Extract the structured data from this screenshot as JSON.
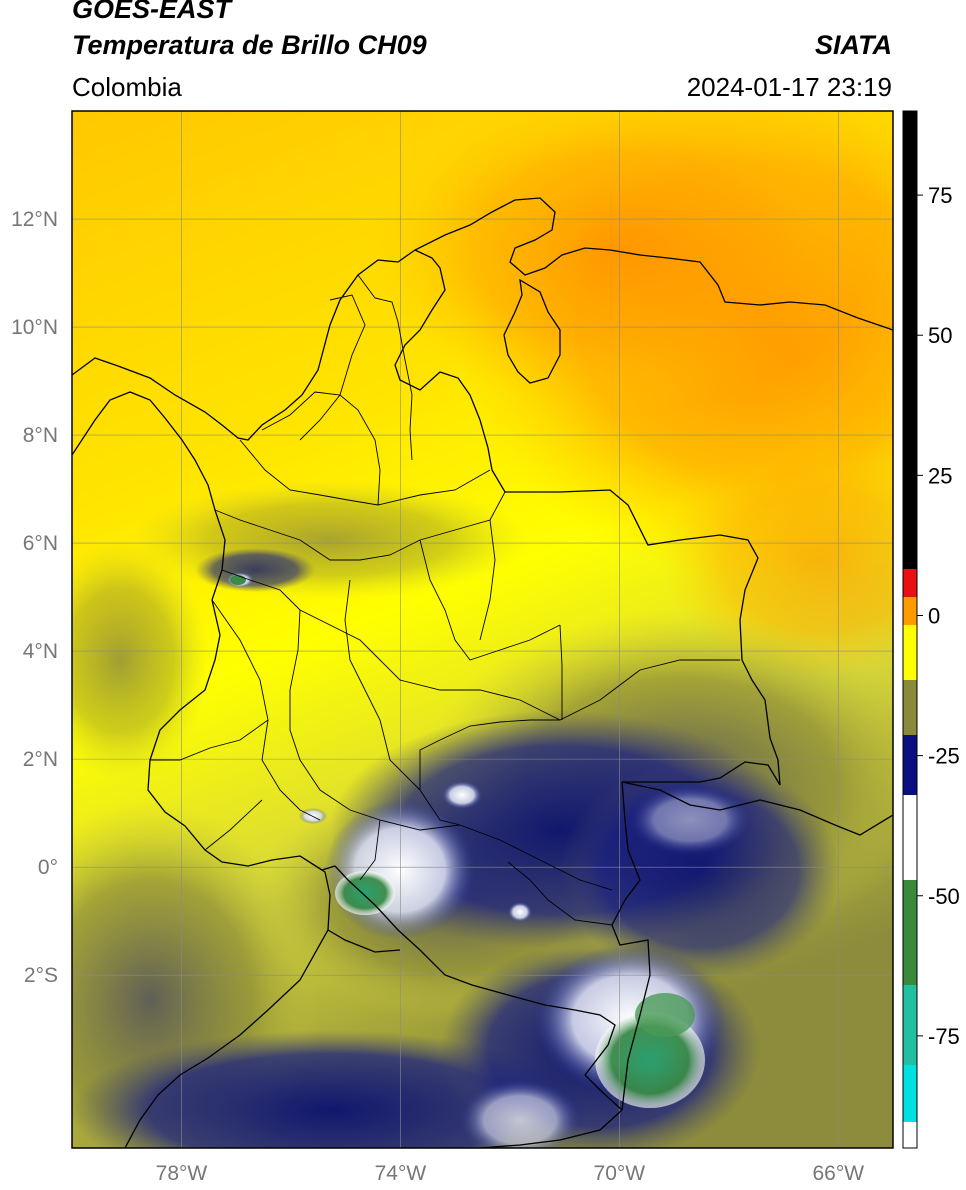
{
  "header": {
    "satellite": "GOES-EAST",
    "product": "Temperatura de Brillo CH09",
    "organization": "SIATA",
    "region": "Colombia",
    "datetime": "2024-01-17 23:19"
  },
  "map": {
    "lon_range": [
      -80,
      -65
    ],
    "lat_range": [
      -5.2,
      14
    ],
    "lon_ticks": [
      {
        "value": -78,
        "label": "78°W"
      },
      {
        "value": -74,
        "label": "74°W"
      },
      {
        "value": -70,
        "label": "70°W"
      },
      {
        "value": -66,
        "label": "66°W"
      }
    ],
    "lat_ticks": [
      {
        "value": 12,
        "label": "12°N"
      },
      {
        "value": 10,
        "label": "10°N"
      },
      {
        "value": 8,
        "label": "8°N"
      },
      {
        "value": 6,
        "label": "6°N"
      },
      {
        "value": 4,
        "label": "4°N"
      },
      {
        "value": 2,
        "label": "2°N"
      },
      {
        "value": 0,
        "label": "0°"
      },
      {
        "value": -2,
        "label": "2°S"
      }
    ],
    "grid": true
  },
  "colorbar": {
    "range": [
      -95,
      90
    ],
    "ticks": [
      {
        "value": 75,
        "label": "75"
      },
      {
        "value": 50,
        "label": "50"
      },
      {
        "value": 25,
        "label": "25"
      },
      {
        "value": 0,
        "label": "0"
      },
      {
        "value": -25,
        "label": "-25"
      },
      {
        "value": -50,
        "label": "-50"
      },
      {
        "value": -75,
        "label": "-75"
      }
    ],
    "colors": {
      "black": "#000000",
      "red": "#e81010",
      "orange": "#ff9a00",
      "yellow": "#ffff00",
      "olive": "#8a8a3a",
      "navy": "#0a1080",
      "white": "#ffffff",
      "green": "#3a8a3a",
      "teal": "#20c0a0",
      "cyan": "#00e0e0"
    }
  }
}
